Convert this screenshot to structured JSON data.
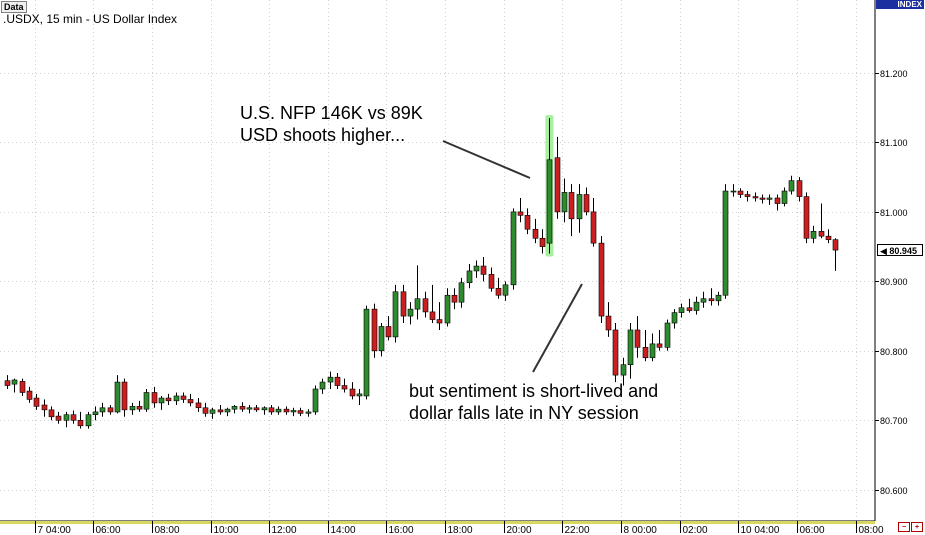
{
  "window": {
    "tab_label": "Data",
    "index_label": "INDEX"
  },
  "chart_data": {
    "type": "candlestick",
    "title": ".USDX, 15 min - US Dollar Index",
    "y_ticks": [
      "81.200",
      "81.100",
      "81.000",
      "80.900",
      "80.800",
      "80.700",
      "80.600"
    ],
    "y_tick_values": [
      81.2,
      81.1,
      81.0,
      80.9,
      80.8,
      80.7,
      80.6
    ],
    "ylim": [
      80.555,
      81.305
    ],
    "x_ticks": [
      "7 04:00",
      "06:00",
      "08:00",
      "10:00",
      "12:00",
      "14:00",
      "16:00",
      "18:00",
      "20:00",
      "22:00",
      "8 00:00",
      "02:00",
      "10 04:00",
      "06:00",
      "08:00"
    ],
    "x_tick_index": [
      4,
      12,
      20,
      28,
      36,
      44,
      52,
      60,
      68,
      76,
      84,
      92,
      100,
      108,
      116
    ],
    "last_price": "80.945",
    "last_price_value": 80.945,
    "grid": true,
    "colors": {
      "up": "#2e8b2e",
      "down": "#cc2020",
      "grid": "#cfcfcf",
      "highlight": "#a8f0a0"
    },
    "highlight_index": 74,
    "ohlc": [
      [
        80.757,
        80.765,
        80.745,
        80.75
      ],
      [
        80.752,
        80.76,
        80.74,
        80.758
      ],
      [
        80.756,
        80.76,
        80.735,
        80.74
      ],
      [
        80.742,
        80.748,
        80.725,
        80.73
      ],
      [
        80.732,
        80.738,
        80.715,
        80.72
      ],
      [
        80.722,
        80.73,
        80.705,
        80.715
      ],
      [
        80.715,
        80.72,
        80.7,
        80.705
      ],
      [
        80.706,
        80.712,
        80.695,
        80.7
      ],
      [
        80.7,
        80.712,
        80.69,
        80.708
      ],
      [
        80.708,
        80.714,
        80.695,
        80.7
      ],
      [
        80.7,
        80.712,
        80.688,
        80.692
      ],
      [
        80.692,
        80.712,
        80.688,
        80.708
      ],
      [
        80.708,
        80.72,
        80.7,
        80.712
      ],
      [
        80.712,
        80.725,
        80.705,
        80.718
      ],
      [
        80.718,
        80.722,
        80.708,
        80.712
      ],
      [
        80.712,
        80.765,
        80.71,
        80.755
      ],
      [
        80.755,
        80.76,
        80.705,
        80.715
      ],
      [
        80.715,
        80.725,
        80.708,
        80.72
      ],
      [
        80.72,
        80.728,
        80.712,
        80.716
      ],
      [
        80.716,
        80.745,
        80.712,
        80.74
      ],
      [
        80.74,
        80.748,
        80.718,
        80.725
      ],
      [
        80.725,
        80.735,
        80.715,
        80.732
      ],
      [
        80.732,
        80.738,
        80.722,
        80.728
      ],
      [
        80.728,
        80.74,
        80.722,
        80.735
      ],
      [
        80.735,
        80.74,
        80.725,
        80.73
      ],
      [
        80.73,
        80.738,
        80.72,
        80.725
      ],
      [
        80.725,
        80.732,
        80.712,
        80.718
      ],
      [
        80.718,
        80.725,
        80.705,
        80.71
      ],
      [
        80.71,
        80.718,
        80.702,
        80.715
      ],
      [
        80.715,
        80.722,
        80.708,
        80.712
      ],
      [
        80.712,
        80.718,
        80.706,
        80.716
      ],
      [
        80.716,
        80.722,
        80.71,
        80.72
      ],
      [
        80.72,
        80.726,
        80.712,
        80.716
      ],
      [
        80.716,
        80.722,
        80.71,
        80.718
      ],
      [
        80.718,
        80.722,
        80.712,
        80.715
      ],
      [
        80.715,
        80.72,
        80.708,
        80.718
      ],
      [
        80.718,
        80.722,
        80.708,
        80.712
      ],
      [
        80.712,
        80.72,
        80.708,
        80.716
      ],
      [
        80.716,
        80.72,
        80.708,
        80.712
      ],
      [
        80.712,
        80.718,
        80.706,
        80.714
      ],
      [
        80.714,
        80.718,
        80.706,
        80.71
      ],
      [
        80.71,
        80.716,
        80.705,
        80.712
      ],
      [
        80.712,
        80.75,
        80.708,
        80.745
      ],
      [
        80.745,
        80.76,
        80.738,
        80.755
      ],
      [
        80.755,
        80.77,
        80.745,
        80.762
      ],
      [
        80.762,
        80.768,
        80.745,
        80.75
      ],
      [
        80.75,
        80.76,
        80.74,
        80.745
      ],
      [
        80.745,
        80.755,
        80.73,
        80.735
      ],
      [
        80.735,
        80.745,
        80.722,
        80.738
      ],
      [
        80.735,
        80.865,
        80.73,
        80.86
      ],
      [
        80.86,
        80.868,
        80.79,
        80.8
      ],
      [
        80.8,
        80.84,
        80.792,
        80.835
      ],
      [
        80.835,
        80.85,
        80.815,
        80.82
      ],
      [
        80.82,
        80.895,
        80.812,
        80.885
      ],
      [
        80.885,
        80.895,
        80.84,
        80.85
      ],
      [
        80.85,
        80.87,
        80.838,
        80.86
      ],
      [
        80.86,
        80.923,
        80.845,
        80.875
      ],
      [
        80.875,
        80.885,
        80.848,
        80.856
      ],
      [
        80.856,
        80.895,
        80.84,
        80.845
      ],
      [
        80.845,
        80.87,
        80.83,
        80.84
      ],
      [
        80.84,
        80.89,
        80.835,
        80.88
      ],
      [
        80.88,
        80.89,
        80.86,
        80.87
      ],
      [
        80.87,
        80.905,
        80.862,
        80.898
      ],
      [
        80.898,
        80.925,
        80.89,
        80.915
      ],
      [
        80.915,
        80.93,
        80.905,
        80.922
      ],
      [
        80.922,
        80.935,
        80.9,
        80.91
      ],
      [
        80.91,
        80.92,
        80.885,
        80.89
      ],
      [
        80.89,
        80.905,
        80.875,
        80.88
      ],
      [
        80.88,
        80.9,
        80.872,
        80.895
      ],
      [
        80.895,
        81.005,
        80.888,
        81.0
      ],
      [
        81.0,
        81.02,
        80.985,
        80.995
      ],
      [
        80.995,
        81.005,
        80.968,
        80.975
      ],
      [
        80.975,
        80.99,
        80.955,
        80.962
      ],
      [
        80.962,
        80.975,
        80.94,
        80.95
      ],
      [
        80.955,
        81.135,
        80.94,
        81.075
      ],
      [
        81.078,
        81.108,
        80.99,
        81.0
      ],
      [
        81.0,
        81.048,
        80.985,
        81.028
      ],
      [
        81.028,
        81.04,
        80.965,
        80.99
      ],
      [
        80.99,
        81.04,
        80.97,
        81.025
      ],
      [
        81.025,
        81.035,
        80.995,
        81.0
      ],
      [
        81.0,
        81.02,
        80.95,
        80.955
      ],
      [
        80.955,
        80.965,
        80.84,
        80.85
      ],
      [
        80.85,
        80.87,
        80.82,
        80.83
      ],
      [
        80.83,
        80.84,
        80.755,
        80.765
      ],
      [
        80.765,
        80.79,
        80.75,
        80.78
      ],
      [
        80.78,
        80.84,
        80.76,
        80.83
      ],
      [
        80.83,
        80.85,
        80.79,
        80.805
      ],
      [
        80.805,
        80.83,
        80.785,
        80.79
      ],
      [
        80.79,
        80.825,
        80.785,
        80.81
      ],
      [
        80.81,
        80.83,
        80.8,
        80.805
      ],
      [
        80.805,
        80.845,
        80.8,
        80.84
      ],
      [
        80.84,
        80.86,
        80.832,
        80.855
      ],
      [
        80.855,
        80.868,
        80.848,
        80.862
      ],
      [
        80.862,
        80.875,
        80.855,
        80.858
      ],
      [
        80.858,
        80.878,
        80.852,
        80.87
      ],
      [
        80.87,
        80.885,
        80.862,
        80.875
      ],
      [
        80.875,
        80.89,
        80.865,
        80.872
      ],
      [
        80.872,
        80.885,
        80.865,
        80.88
      ],
      [
        80.88,
        81.04,
        80.875,
        81.03
      ],
      [
        81.03,
        81.04,
        81.022,
        81.03
      ],
      [
        81.03,
        81.034,
        81.02,
        81.025
      ],
      [
        81.025,
        81.03,
        81.015,
        81.022
      ],
      [
        81.022,
        81.028,
        81.015,
        81.02
      ],
      [
        81.02,
        81.025,
        81.012,
        81.018
      ],
      [
        81.018,
        81.025,
        81.01,
        81.02
      ],
      [
        81.02,
        81.025,
        81.002,
        81.012
      ],
      [
        81.012,
        81.035,
        81.008,
        81.03
      ],
      [
        81.03,
        81.052,
        81.025,
        81.045
      ],
      [
        81.045,
        81.05,
        81.015,
        81.022
      ],
      [
        81.022,
        81.028,
        80.955,
        80.962
      ],
      [
        80.962,
        80.98,
        80.955,
        80.972
      ],
      [
        80.972,
        81.012,
        80.962,
        80.965
      ],
      [
        80.965,
        80.975,
        80.955,
        80.96
      ],
      [
        80.96,
        80.962,
        80.915,
        80.945
      ]
    ]
  },
  "annotations": [
    {
      "lines": [
        "U.S. NFP 146K vs 89K",
        "USD shoots higher..."
      ]
    },
    {
      "lines": [
        "but sentiment is short-lived and",
        "dollar falls late in NY session"
      ]
    }
  ],
  "corner_icons": [
    "zoom-out-icon",
    "zoom-in-icon"
  ],
  "corner_icon_glyphs": [
    "−",
    "+"
  ]
}
